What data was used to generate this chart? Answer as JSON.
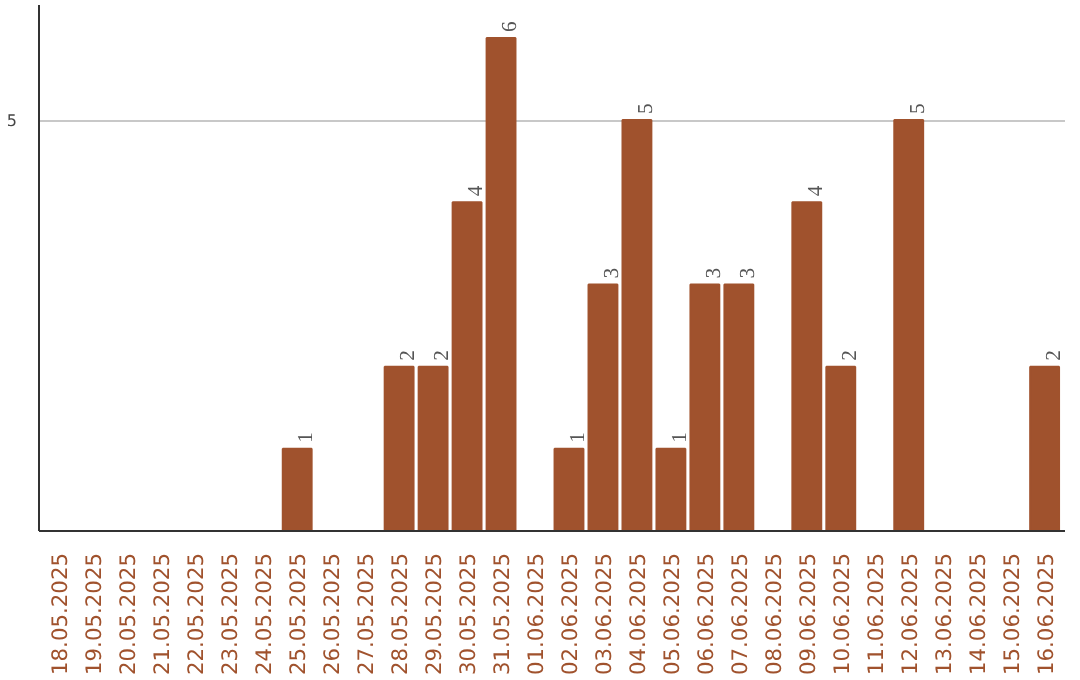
{
  "chart_data": {
    "type": "bar",
    "categories": [
      "18.05.2025",
      "19.05.2025",
      "20.05.2025",
      "21.05.2025",
      "22.05.2025",
      "23.05.2025",
      "24.05.2025",
      "25.05.2025",
      "26.05.2025",
      "27.05.2025",
      "28.05.2025",
      "29.05.2025",
      "30.05.2025",
      "31.05.2025",
      "01.06.2025",
      "02.06.2025",
      "03.06.2025",
      "04.06.2025",
      "05.06.2025",
      "06.06.2025",
      "07.06.2025",
      "08.06.2025",
      "09.06.2025",
      "10.06.2025",
      "11.06.2025",
      "12.06.2025",
      "13.06.2025",
      "14.06.2025",
      "15.06.2025",
      "16.06.2025"
    ],
    "values": [
      0,
      0,
      0,
      0,
      0,
      0,
      0,
      1,
      0,
      0,
      2,
      2,
      4,
      6,
      0,
      1,
      3,
      5,
      1,
      3,
      3,
      0,
      4,
      2,
      0,
      5,
      0,
      0,
      0,
      2
    ],
    "value_labels": [
      null,
      null,
      null,
      null,
      null,
      null,
      null,
      "1",
      null,
      null,
      "2",
      "2",
      "4",
      "6",
      null,
      "1",
      "3",
      "5",
      "1",
      "3",
      "3",
      null,
      "4",
      "2",
      null,
      "5",
      null,
      null,
      null,
      "2"
    ],
    "color": "#a0522d",
    "ylim": [
      0,
      6.4
    ],
    "yticks": [
      5
    ],
    "grid": "y"
  }
}
